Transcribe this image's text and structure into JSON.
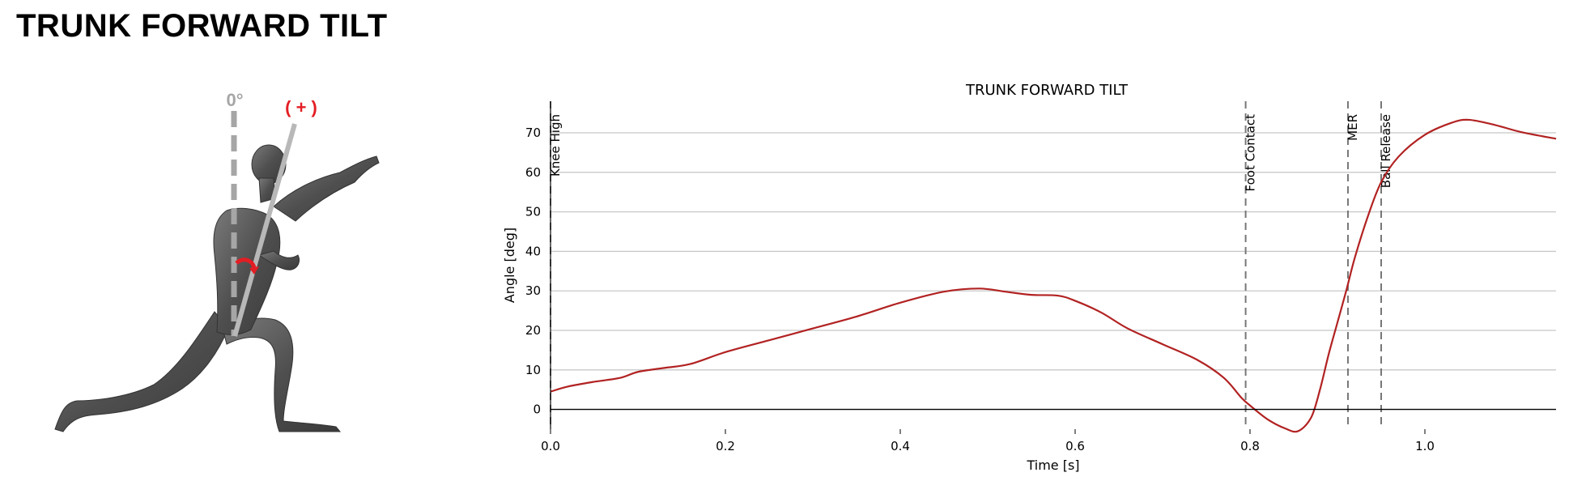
{
  "page": {
    "title": "TRUNK FORWARD TILT"
  },
  "illustration": {
    "zero_label": "0°",
    "positive_label": "( + )",
    "colors": {
      "reference": "#a6a6a6",
      "positive": "#e31e24",
      "body": "#555555"
    }
  },
  "chart_data": {
    "type": "line",
    "title": "TRUNK FORWARD TILT",
    "xlabel": "Time [s]",
    "ylabel": "Angle [deg]",
    "xlim": [
      0,
      1.15
    ],
    "ylim": [
      -5,
      78
    ],
    "xticks": [
      0.0,
      0.2,
      0.4,
      0.6,
      0.8,
      1.0
    ],
    "xtick_labels": [
      "0.0",
      "0.2",
      "0.4",
      "0.6",
      "0.8",
      "1.0"
    ],
    "yticks": [
      0,
      10,
      20,
      30,
      40,
      50,
      60,
      70
    ],
    "ytick_labels": [
      "0",
      "10",
      "20",
      "30",
      "40",
      "50",
      "60",
      "70"
    ],
    "grid": "horizontal",
    "line_color": "#b22222",
    "series": [
      {
        "x": [
          0.0,
          0.02,
          0.05,
          0.08,
          0.1,
          0.13,
          0.16,
          0.2,
          0.25,
          0.3,
          0.35,
          0.4,
          0.45,
          0.49,
          0.52,
          0.55,
          0.58,
          0.6,
          0.63,
          0.66,
          0.7,
          0.74,
          0.77,
          0.79,
          0.8,
          0.82,
          0.84,
          0.855,
          0.87,
          0.88,
          0.89,
          0.9,
          0.91,
          0.92,
          0.935,
          0.95,
          0.97,
          1.0,
          1.03,
          1.05,
          1.08,
          1.11,
          1.15
        ],
        "y": [
          4.5,
          5.8,
          7.0,
          8.0,
          9.5,
          10.5,
          11.5,
          14.5,
          17.5,
          20.5,
          23.5,
          27.0,
          29.8,
          30.6,
          29.8,
          29.0,
          28.8,
          27.5,
          24.5,
          20.5,
          16.5,
          12.5,
          8.0,
          3.0,
          1.0,
          -2.5,
          -4.8,
          -5.5,
          -2.0,
          5.0,
          14.0,
          22.0,
          30.0,
          38.5,
          49.0,
          57.5,
          64.0,
          69.5,
          72.5,
          73.3,
          72.0,
          70.2,
          68.5
        ]
      }
    ],
    "events": [
      {
        "label": "Knee High",
        "x": 0.0
      },
      {
        "label": "Foot Contact",
        "x": 0.795
      },
      {
        "label": "MER",
        "x": 0.912
      },
      {
        "label": "Ball Release",
        "x": 0.95
      }
    ],
    "reference_line_y": 0
  }
}
